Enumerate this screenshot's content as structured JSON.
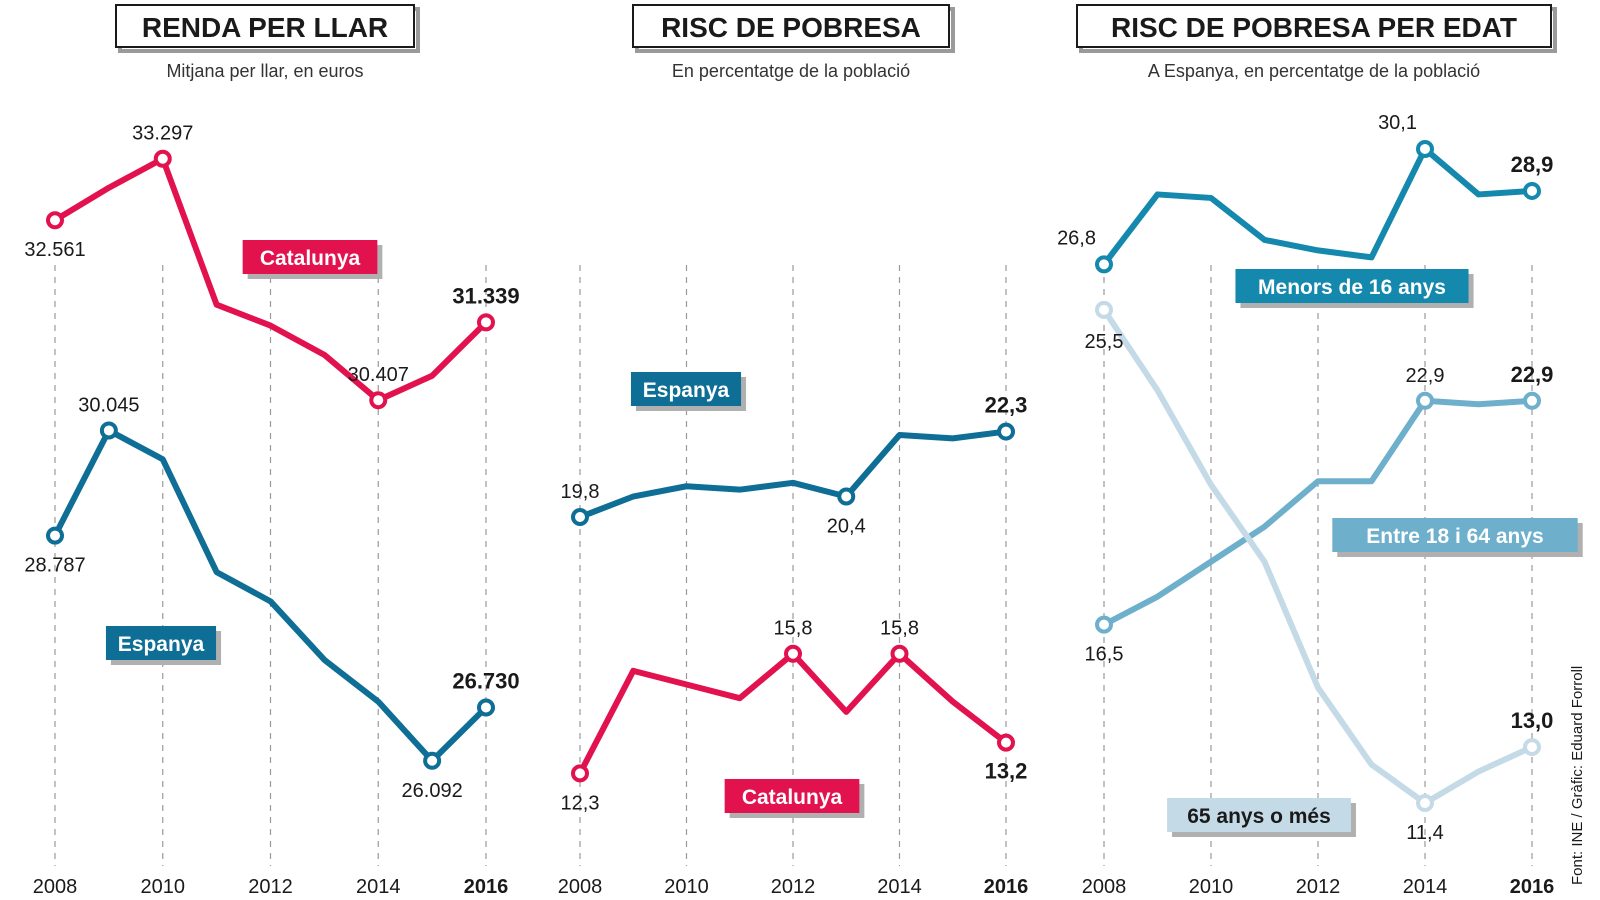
{
  "colors": {
    "catalunya": "#e2124f",
    "espanya": "#0f6e96",
    "menors": "#1488ad",
    "adults": "#6eafcc",
    "grans": "#c4dbe7",
    "grid": "#9a9a9a",
    "text": "#1a1a1a",
    "badge_text": "#ffffff",
    "badge_text_dark": "#1a1a1a"
  },
  "source": "Font: INE / Gràfic: Eduard Forroll",
  "chart_data": [
    {
      "type": "line",
      "title": "RENDA PER LLAR",
      "subtitle": "Mitjana per llar, en euros",
      "x": [
        2008,
        2009,
        2010,
        2011,
        2012,
        2013,
        2014,
        2015,
        2016
      ],
      "xticks": [
        "2008",
        "2010",
        "2012",
        "2014",
        "2016"
      ],
      "ylim": [
        25000,
        34000
      ],
      "series": [
        {
          "name": "Catalunya",
          "color_key": "catalunya",
          "label_pos": "upper-middle",
          "values": [
            32561,
            32950,
            33297,
            31550,
            31300,
            30950,
            30407,
            30700,
            31339
          ],
          "labels": [
            {
              "index": 0,
              "text": "32.561",
              "pos": "below"
            },
            {
              "index": 2,
              "text": "33.297",
              "pos": "above"
            },
            {
              "index": 6,
              "text": "30.407",
              "pos": "above"
            },
            {
              "index": 8,
              "text": "31.339",
              "pos": "above",
              "bold": true
            }
          ]
        },
        {
          "name": "Espanya",
          "color_key": "espanya",
          "label_pos": "lower-left",
          "values": [
            28787,
            30045,
            29700,
            28350,
            28000,
            27300,
            26800,
            26092,
            26730
          ],
          "labels": [
            {
              "index": 0,
              "text": "28.787",
              "pos": "below"
            },
            {
              "index": 1,
              "text": "30.045",
              "pos": "above"
            },
            {
              "index": 7,
              "text": "26.092",
              "pos": "below"
            },
            {
              "index": 8,
              "text": "26.730",
              "pos": "above",
              "bold": true
            }
          ]
        }
      ]
    },
    {
      "type": "line",
      "title": "RISC DE POBRESA",
      "subtitle": "En percentatge de la població",
      "x": [
        2008,
        2009,
        2010,
        2011,
        2012,
        2013,
        2014,
        2015,
        2016
      ],
      "xticks": [
        "2008",
        "2010",
        "2012",
        "2014",
        "2016"
      ],
      "ylim": [
        10,
        32
      ],
      "series": [
        {
          "name": "Espanya",
          "color_key": "espanya",
          "label_pos": "upper-left",
          "values": [
            19.8,
            20.4,
            20.7,
            20.6,
            20.8,
            20.4,
            22.2,
            22.1,
            22.3
          ],
          "labels": [
            {
              "index": 0,
              "text": "19,8",
              "pos": "above"
            },
            {
              "index": 5,
              "text": "20,4",
              "pos": "below"
            },
            {
              "index": 8,
              "text": "22,3",
              "pos": "above",
              "bold": true
            }
          ]
        },
        {
          "name": "Catalunya",
          "color_key": "catalunya",
          "label_pos": "lower-middle",
          "values": [
            12.3,
            15.3,
            14.9,
            14.5,
            15.8,
            14.1,
            15.8,
            14.4,
            13.2
          ],
          "labels": [
            {
              "index": 0,
              "text": "12,3",
              "pos": "below"
            },
            {
              "index": 4,
              "text": "15,8",
              "pos": "above"
            },
            {
              "index": 6,
              "text": "15,8",
              "pos": "above"
            },
            {
              "index": 8,
              "text": "13,2",
              "pos": "below",
              "bold": true
            }
          ]
        }
      ]
    },
    {
      "type": "line",
      "title": "RISC DE POBRESA PER EDAT",
      "subtitle": "A Espanya, en percentatge de la població",
      "x": [
        2008,
        2009,
        2010,
        2011,
        2012,
        2013,
        2014,
        2015,
        2016
      ],
      "xticks": [
        "2008",
        "2010",
        "2012",
        "2014",
        "2016"
      ],
      "ylim": [
        10,
        31.5
      ],
      "series": [
        {
          "name": "Menors de 16 anys",
          "color_key": "menors",
          "label_pos": "upper",
          "values": [
            26.8,
            28.8,
            28.7,
            27.5,
            27.2,
            27.0,
            30.1,
            28.8,
            28.9
          ],
          "labels": [
            {
              "index": 0,
              "text": "26,8",
              "pos": "above-left"
            },
            {
              "index": 6,
              "text": "30,1",
              "pos": "above-left"
            },
            {
              "index": 8,
              "text": "28,9",
              "pos": "above",
              "bold": true
            }
          ]
        },
        {
          "name": "Entre 18 i 64 anys",
          "color_key": "adults",
          "label_pos": "middle-right",
          "values": [
            16.5,
            17.3,
            18.3,
            19.3,
            20.6,
            20.6,
            22.9,
            22.8,
            22.9
          ],
          "labels": [
            {
              "index": 0,
              "text": "16,5",
              "pos": "below"
            },
            {
              "index": 6,
              "text": "22,9",
              "pos": "above"
            },
            {
              "index": 8,
              "text": "22,9",
              "pos": "above",
              "bold": true
            }
          ]
        },
        {
          "name": "65 anys o més",
          "color_key": "grans",
          "label_pos": "lower",
          "values": [
            25.5,
            23.2,
            20.5,
            18.3,
            14.7,
            12.5,
            11.4,
            12.3,
            13.0
          ],
          "labels": [
            {
              "index": 0,
              "text": "25,5",
              "pos": "below-left"
            },
            {
              "index": 6,
              "text": "11,4",
              "pos": "below"
            },
            {
              "index": 8,
              "text": "13,0",
              "pos": "above",
              "bold": true
            }
          ]
        }
      ]
    }
  ]
}
